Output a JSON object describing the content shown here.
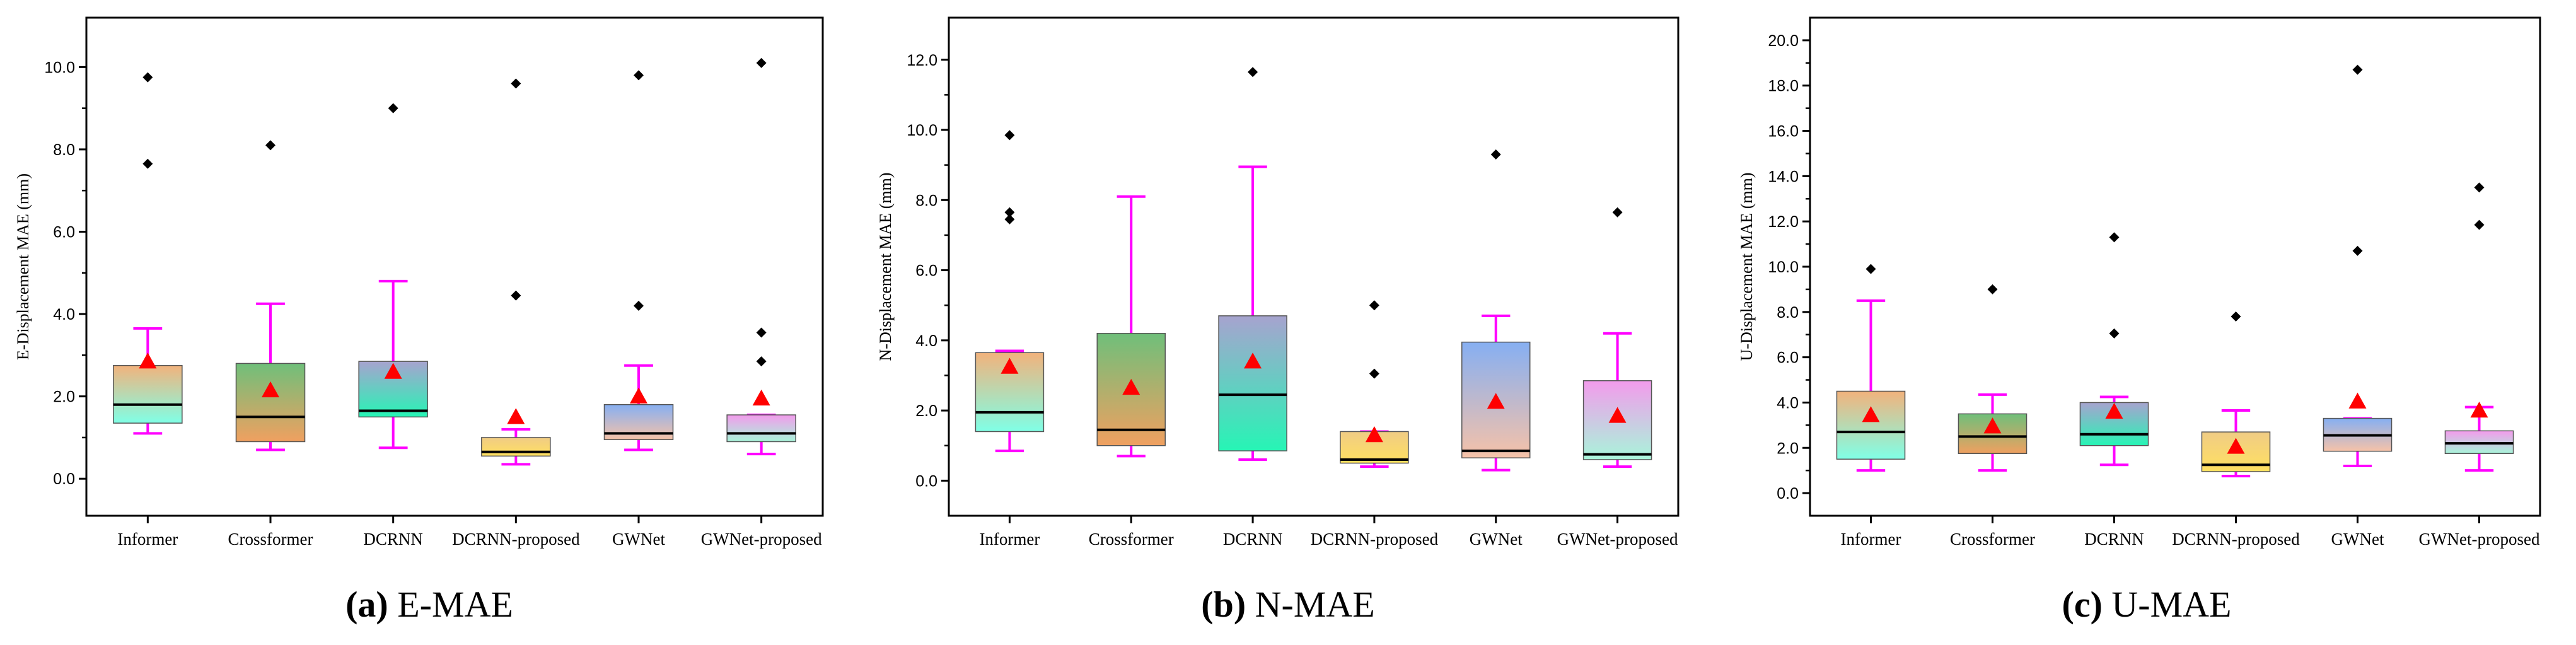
{
  "chart_data": [
    {
      "type": "box",
      "panel_letter": "(a)",
      "panel_title": "E-MAE",
      "ylabel": "E-Displacement MAE (mm)",
      "ylim": [
        -0.9,
        11.2
      ],
      "yticks": [
        0,
        2,
        4,
        6,
        8,
        10
      ],
      "ytick_labels": [
        "0.0",
        "2.0",
        "4.0",
        "6.0",
        "8.0",
        "10.0"
      ],
      "categories": [
        "Informer",
        "Crossformer",
        "DCRNN",
        "DCRNN-proposed",
        "GWNet",
        "GWNet-proposed"
      ],
      "boxes": [
        {
          "whisker_low": 1.1,
          "q1": 1.35,
          "median": 1.8,
          "q3": 2.75,
          "whisker_high": 3.65,
          "mean": 2.85,
          "outliers": [
            7.65,
            9.75
          ]
        },
        {
          "whisker_low": 0.7,
          "q1": 0.9,
          "median": 1.5,
          "q3": 2.8,
          "whisker_high": 4.25,
          "mean": 2.15,
          "outliers": [
            8.1
          ]
        },
        {
          "whisker_low": 0.75,
          "q1": 1.5,
          "median": 1.65,
          "q3": 2.85,
          "whisker_high": 4.8,
          "mean": 2.6,
          "outliers": [
            9.0
          ]
        },
        {
          "whisker_low": 0.35,
          "q1": 0.55,
          "median": 0.65,
          "q3": 1.0,
          "whisker_high": 1.2,
          "mean": 1.5,
          "outliers": [
            4.45,
            9.6
          ]
        },
        {
          "whisker_low": 0.7,
          "q1": 0.95,
          "median": 1.1,
          "q3": 1.8,
          "whisker_high": 2.75,
          "mean": 2.0,
          "outliers": [
            4.2,
            9.8
          ]
        },
        {
          "whisker_low": 0.6,
          "q1": 0.9,
          "median": 1.1,
          "q3": 1.55,
          "whisker_high": 1.55,
          "mean": 1.95,
          "outliers": [
            2.85,
            3.55,
            10.1
          ]
        }
      ]
    },
    {
      "type": "box",
      "panel_letter": "(b)",
      "panel_title": "N-MAE",
      "ylabel": "N-Displacement MAE (mm)",
      "ylim": [
        -1.0,
        13.2
      ],
      "yticks": [
        0,
        2,
        4,
        6,
        8,
        10,
        12
      ],
      "ytick_labels": [
        "0.0",
        "2.0",
        "4.0",
        "6.0",
        "8.0",
        "10.0",
        "12.0"
      ],
      "categories": [
        "Informer",
        "Crossformer",
        "DCRNN",
        "DCRNN-proposed",
        "GWNet",
        "GWNet-proposed"
      ],
      "boxes": [
        {
          "whisker_low": 0.85,
          "q1": 1.4,
          "median": 1.95,
          "q3": 3.65,
          "whisker_high": 3.7,
          "mean": 3.25,
          "outliers": [
            7.45,
            7.65,
            9.85
          ]
        },
        {
          "whisker_low": 0.7,
          "q1": 1.0,
          "median": 1.45,
          "q3": 4.2,
          "whisker_high": 8.1,
          "mean": 2.65,
          "outliers": []
        },
        {
          "whisker_low": 0.6,
          "q1": 0.85,
          "median": 2.45,
          "q3": 4.7,
          "whisker_high": 8.95,
          "mean": 3.4,
          "outliers": [
            11.65
          ]
        },
        {
          "whisker_low": 0.4,
          "q1": 0.5,
          "median": 0.6,
          "q3": 1.4,
          "whisker_high": 1.4,
          "mean": 1.3,
          "outliers": [
            3.05,
            5.0
          ]
        },
        {
          "whisker_low": 0.3,
          "q1": 0.65,
          "median": 0.85,
          "q3": 3.95,
          "whisker_high": 4.7,
          "mean": 2.25,
          "outliers": [
            9.3
          ]
        },
        {
          "whisker_low": 0.4,
          "q1": 0.6,
          "median": 0.75,
          "q3": 2.85,
          "whisker_high": 4.2,
          "mean": 1.85,
          "outliers": [
            7.65
          ]
        }
      ]
    },
    {
      "type": "box",
      "panel_letter": "(c)",
      "panel_title": "U-MAE",
      "ylabel": "U-Displacement MAE (mm)",
      "ylim": [
        -1.0,
        21.0
      ],
      "yticks": [
        0,
        2,
        4,
        6,
        8,
        10,
        12,
        14,
        16,
        18,
        20
      ],
      "ytick_labels": [
        "0.0",
        "2.0",
        "4.0",
        "6.0",
        "8.0",
        "10.0",
        "12.0",
        "14.0",
        "16.0",
        "18.0",
        "20.0"
      ],
      "categories": [
        "Informer",
        "Crossformer",
        "DCRNN",
        "DCRNN-proposed",
        "GWNet",
        "GWNet-proposed"
      ],
      "boxes": [
        {
          "whisker_low": 1.0,
          "q1": 1.5,
          "median": 2.7,
          "q3": 4.5,
          "whisker_high": 8.5,
          "mean": 3.45,
          "outliers": [
            9.9
          ]
        },
        {
          "whisker_low": 1.0,
          "q1": 1.75,
          "median": 2.5,
          "q3": 3.5,
          "whisker_high": 4.35,
          "mean": 2.95,
          "outliers": [
            9.0
          ]
        },
        {
          "whisker_low": 1.25,
          "q1": 2.1,
          "median": 2.6,
          "q3": 4.0,
          "whisker_high": 4.25,
          "mean": 3.6,
          "outliers": [
            7.05,
            11.3
          ]
        },
        {
          "whisker_low": 0.75,
          "q1": 0.95,
          "median": 1.25,
          "q3": 2.7,
          "whisker_high": 3.65,
          "mean": 2.05,
          "outliers": [
            7.8
          ]
        },
        {
          "whisker_low": 1.2,
          "q1": 1.85,
          "median": 2.55,
          "q3": 3.3,
          "whisker_high": 3.3,
          "mean": 4.05,
          "outliers": [
            10.7,
            18.7
          ]
        },
        {
          "whisker_low": 1.0,
          "q1": 1.75,
          "median": 2.2,
          "q3": 2.75,
          "whisker_high": 3.8,
          "mean": 3.65,
          "outliers": [
            11.85,
            13.5
          ]
        }
      ]
    }
  ],
  "style": {
    "whisker_color": "#ff00ff",
    "mean_color": "#ff0000",
    "outlier_color": "#000000",
    "box_gradients": [
      [
        "#f2b27c",
        "#80ffe6"
      ],
      [
        "#6fbf7a",
        "#f0a060"
      ],
      [
        "#a7a3cf",
        "#26f5b5"
      ],
      [
        "#f0cc85",
        "#ffe060"
      ],
      [
        "#86aff2",
        "#f6c2a8"
      ],
      [
        "#f39bec",
        "#a8f5da"
      ]
    ]
  }
}
